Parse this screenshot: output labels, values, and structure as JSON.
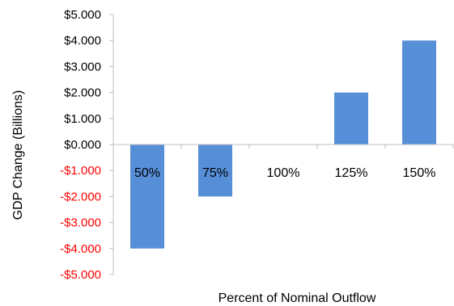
{
  "chart_data": {
    "type": "bar",
    "categories": [
      "50%",
      "75%",
      "100%",
      "125%",
      "150%"
    ],
    "series": [
      {
        "values": [
          -4.0,
          -2.0,
          0.0,
          2.0,
          4.0
        ]
      }
    ],
    "xlabel": "Percent of Nominal Outflow",
    "ylabel": "GDP Change (Billions)",
    "ylim": [
      -5.0,
      5.0
    ],
    "yticks": [
      {
        "value": 5,
        "label": "$5.000"
      },
      {
        "value": 4,
        "label": "$4.000"
      },
      {
        "value": 3,
        "label": "$3.000"
      },
      {
        "value": 2,
        "label": "$2.000"
      },
      {
        "value": 1,
        "label": "$1.000"
      },
      {
        "value": 0,
        "label": "$0.000"
      },
      {
        "value": -1,
        "label": "-$1.000"
      },
      {
        "value": -2,
        "label": "-$2.000"
      },
      {
        "value": -3,
        "label": "-$3.000"
      },
      {
        "value": -4,
        "label": "-$4.000"
      },
      {
        "value": -5,
        "label": "-$5.000"
      }
    ],
    "grid": false,
    "colors": {
      "bar": "#568fd8",
      "positive_tick": "#000000",
      "negative_tick": "#ff0000",
      "axis": "#bfbfbf"
    }
  }
}
